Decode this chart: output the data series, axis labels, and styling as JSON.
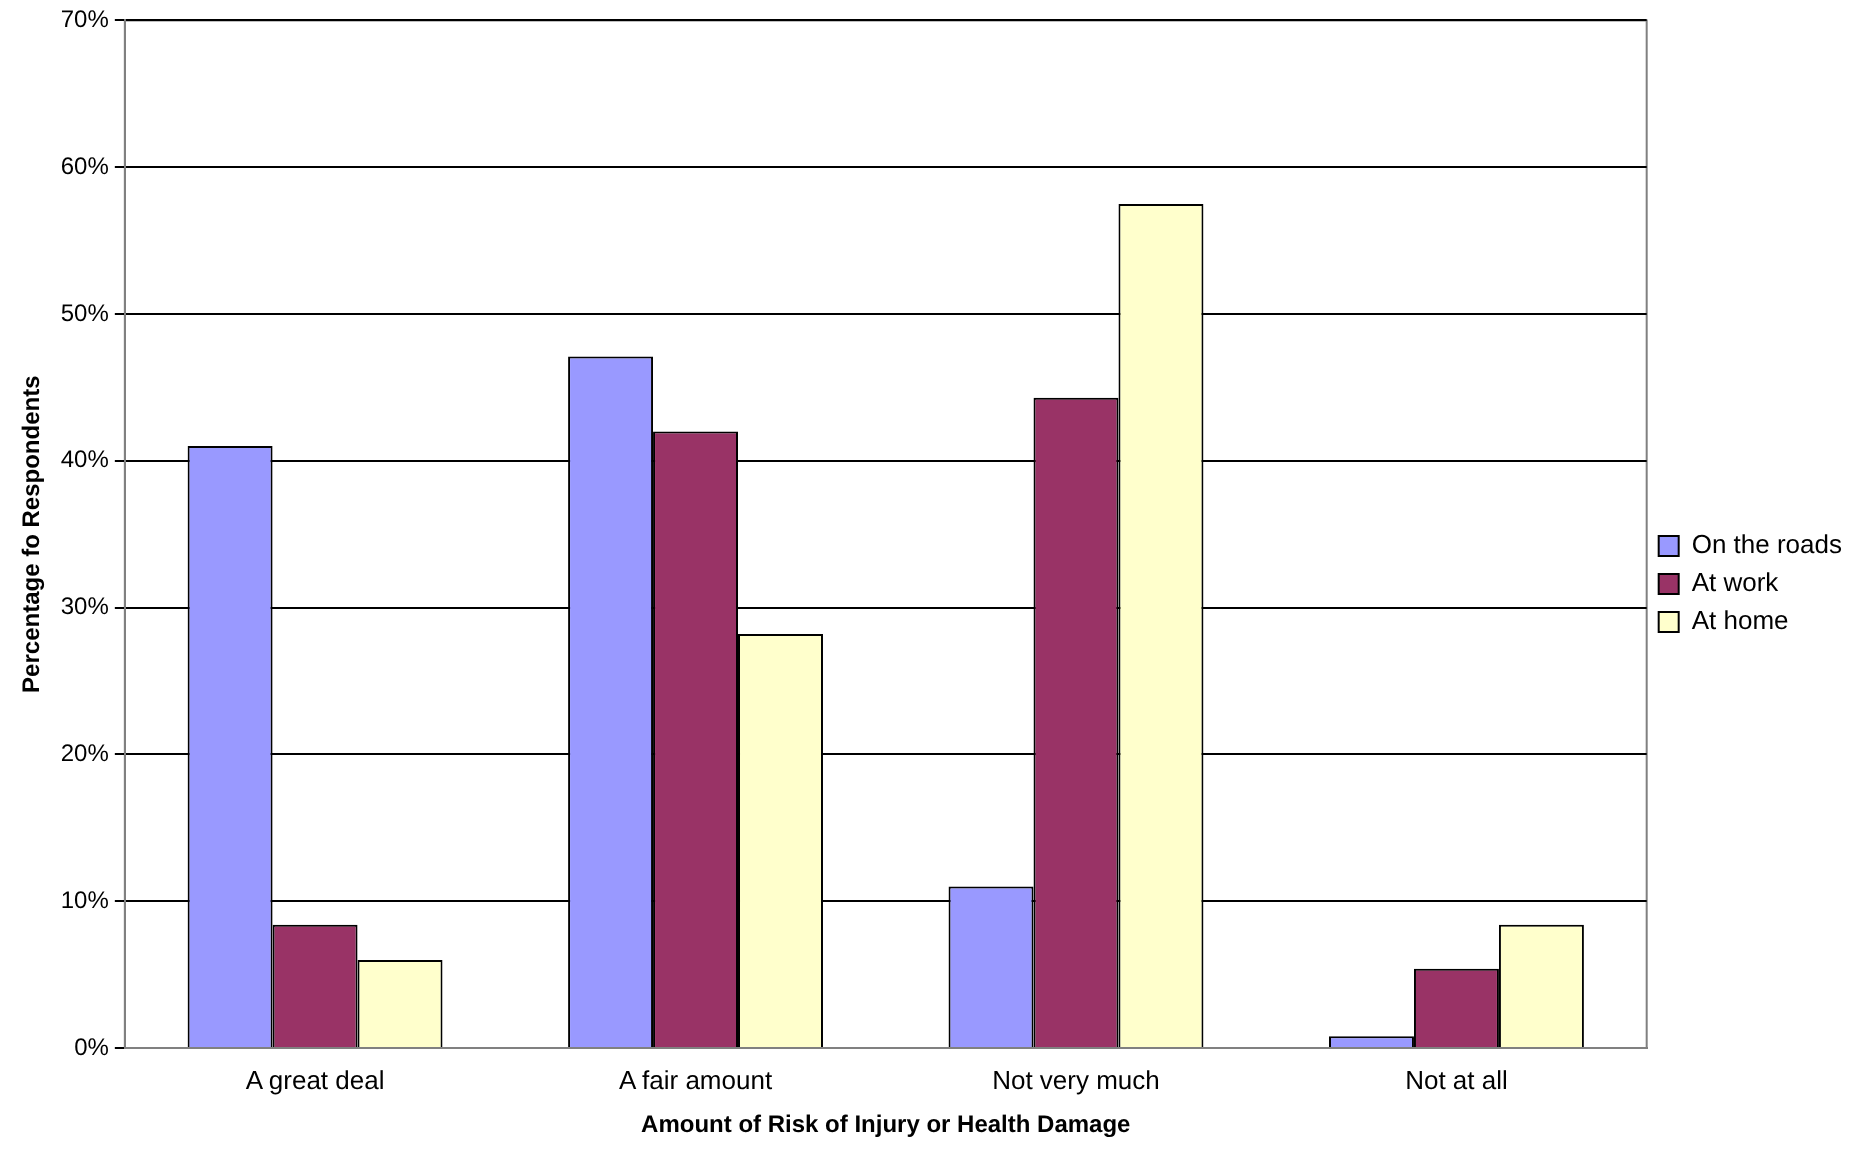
{
  "chart_data": {
    "type": "bar",
    "xlabel": "Amount of Risk of Injury or Health Damage",
    "ylabel": "Percentage fo Respondents",
    "categories": [
      "A great deal",
      "A fair amount",
      "Not very much",
      "Not at all"
    ],
    "series": [
      {
        "name": "On the roads",
        "color": "#9999ff",
        "values": [
          41,
          47.1,
          11,
          0.8
        ]
      },
      {
        "name": "At work",
        "color": "#993366",
        "values": [
          8.4,
          42,
          44.3,
          5.4
        ]
      },
      {
        "name": "At home",
        "color": "#ffffcc",
        "values": [
          6,
          28.2,
          57.5,
          8.4
        ]
      }
    ],
    "ylim": [
      0,
      70
    ],
    "yticks": [
      {
        "value": 0,
        "label": "0%"
      },
      {
        "value": 10,
        "label": "10%"
      },
      {
        "value": 20,
        "label": "20%"
      },
      {
        "value": 30,
        "label": "30%"
      },
      {
        "value": 40,
        "label": "40%"
      },
      {
        "value": 50,
        "label": "50%"
      },
      {
        "value": 60,
        "label": "60%"
      },
      {
        "value": 70,
        "label": "70%"
      }
    ],
    "grid": "y",
    "legend": "right"
  }
}
